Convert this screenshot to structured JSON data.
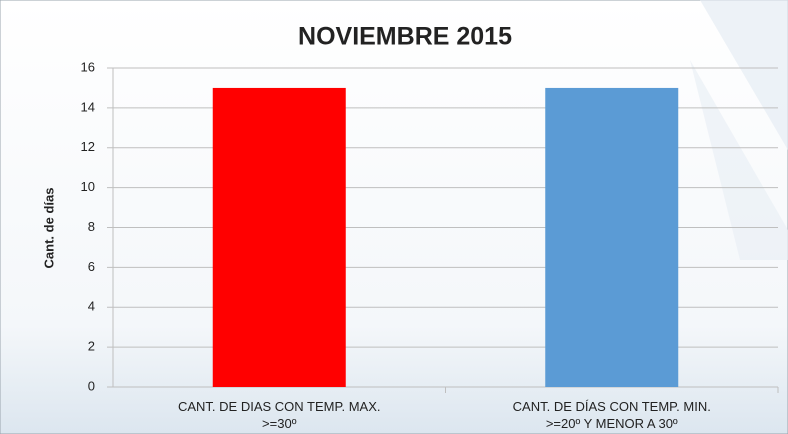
{
  "chart_data": {
    "type": "bar",
    "title": "NOVIEMBRE 2015",
    "y_label": "Cant. de días",
    "categories": [
      "CANT. DE DIAS CON TEMP. MAX.\n>=30º",
      "CANT. DE DÍAS CON TEMP. MIN.\n>=20º Y MENOR A 30º"
    ],
    "values": [
      15,
      15
    ],
    "colors": [
      "#ff0000",
      "#5b9bd5"
    ],
    "ylim": [
      0,
      16
    ],
    "yticks": [
      0,
      2,
      4,
      6,
      8,
      10,
      12,
      14,
      16
    ],
    "grid": true
  }
}
